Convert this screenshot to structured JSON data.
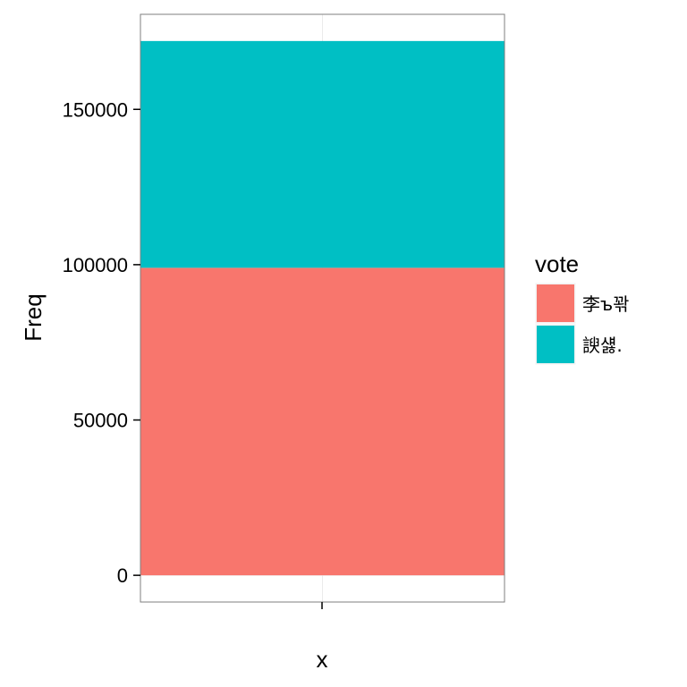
{
  "chart_data": {
    "type": "bar",
    "stacked": true,
    "categories": [
      ""
    ],
    "series": [
      {
        "name": "李ъ꽊",
        "values": [
          99000
        ],
        "color": "#F8766D"
      },
      {
        "name": "諛섏.",
        "values": [
          73000
        ],
        "color": "#00BFC4"
      }
    ],
    "xlabel": "x",
    "ylabel": "Freq",
    "ylim": [
      -8600,
      180600
    ],
    "yticks": [
      0,
      50000,
      100000,
      150000
    ],
    "ytick_labels": [
      "0",
      "50000",
      "100000",
      "150000"
    ],
    "legend": {
      "title": "vote",
      "position": "right"
    },
    "grid": true,
    "background": "#FFFFFF",
    "gridline_color": "#EBEBEB"
  }
}
